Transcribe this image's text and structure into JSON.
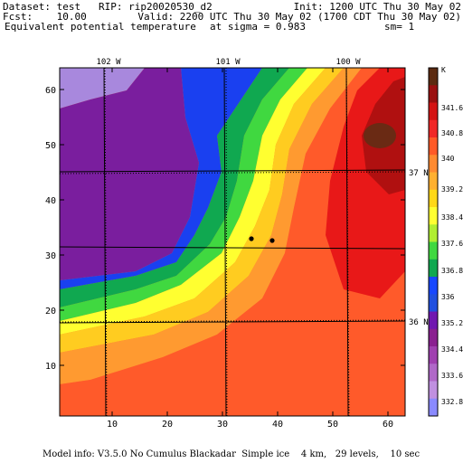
{
  "header": {
    "dataset_line": "Dataset: test   RIP: rip20020530_d2",
    "init_line": "Init: 1200 UTC Thu 30 May 02",
    "fcst_line": "Fcst:    10.00",
    "valid_line": "Valid: 2200 UTC Thu 30 May 02 (1700 CDT Thu 30 May 02)",
    "field_name": "Equivalent potential temperature",
    "sigma_text": "at sigma = 0.983",
    "sm_text": "sm= 1"
  },
  "map": {
    "x_ticks": [
      "10",
      "20",
      "30",
      "40",
      "50",
      "60"
    ],
    "y_ticks": [
      "10",
      "20",
      "30",
      "40",
      "50",
      "60"
    ],
    "lon_labels": [
      "102 W",
      "101 W",
      "100 W"
    ],
    "lat_labels": [
      "37 N",
      "36 N"
    ],
    "markers": [
      "station-1",
      "station-2"
    ]
  },
  "colorbar": {
    "unit": "K",
    "levels": [
      "341.6",
      "340.8",
      "340",
      "339.2",
      "338.4",
      "337.6",
      "336.8",
      "336",
      "335.2",
      "334.4",
      "333.6",
      "332.8"
    ],
    "colors": [
      "#5b2a10",
      "#9a1010",
      "#d41414",
      "#f02828",
      "#ff5a28",
      "#ff8a30",
      "#ffb030",
      "#ffd818",
      "#ffff30",
      "#b0ee30",
      "#40d840",
      "#10a850",
      "#1848ff",
      "#2050e0",
      "#7018b0",
      "#8a2090",
      "#a040b0",
      "#b068c8",
      "#c090e0",
      "#8a8aff"
    ]
  },
  "footer": {
    "model_info": "Model info: V3.5.0 No Cumulus Blackadar  Simple ice    4 km,   29 levels,    10 sec"
  }
}
